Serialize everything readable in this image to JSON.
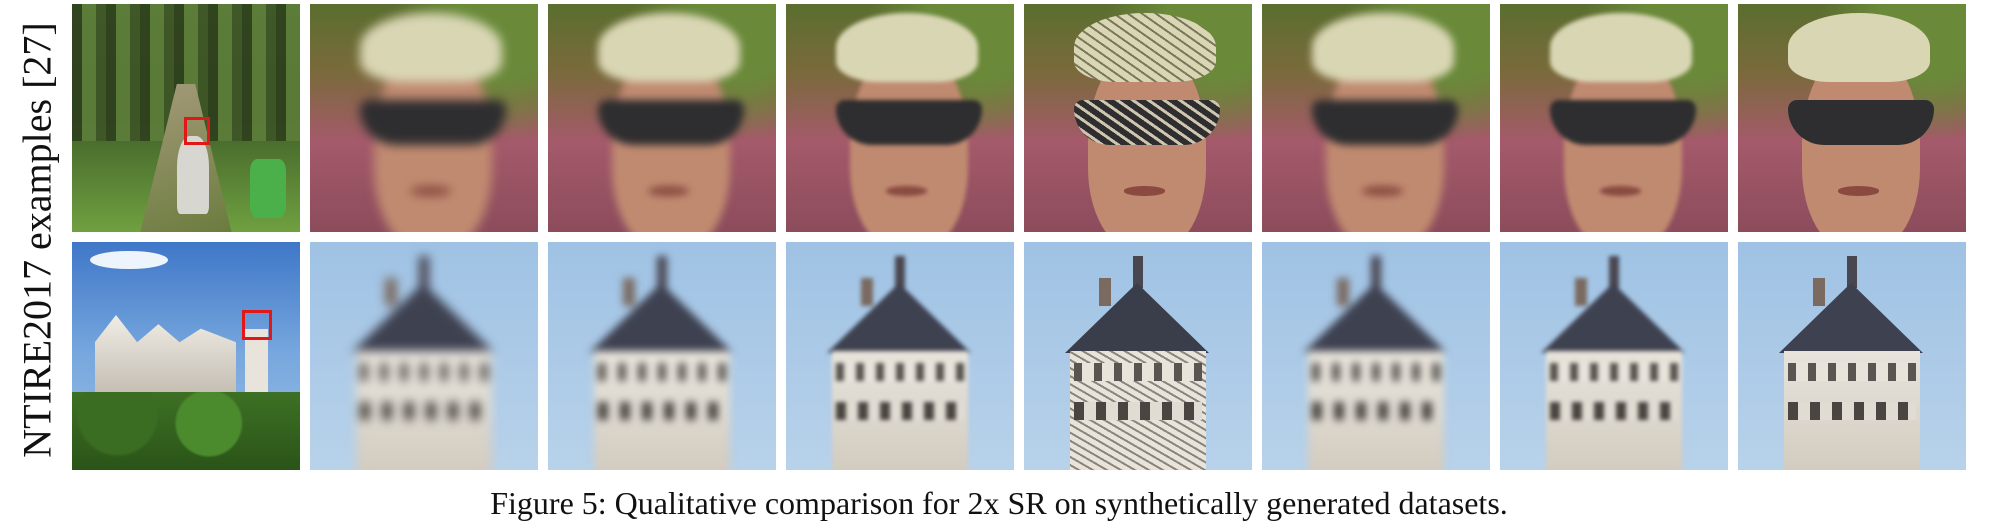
{
  "side_label": "NTIRE2017 examples [27]",
  "caption": "Figure 5: Qualitative comparison for 2x SR on synthetically generated datasets.",
  "highlight_color": "#e01818",
  "rows": [
    {
      "scene": "forest-hiker",
      "tiles": [
        "full-scene-with-roi",
        "face-crop",
        "face-crop",
        "face-crop",
        "face-crop-artifacts",
        "face-crop",
        "face-crop",
        "face-crop-sharp"
      ]
    },
    {
      "scene": "castle",
      "tiles": [
        "full-scene-with-roi",
        "tower-crop",
        "tower-crop",
        "tower-crop",
        "tower-crop-artifacts",
        "tower-crop",
        "tower-crop",
        "tower-crop-sharp"
      ]
    }
  ]
}
